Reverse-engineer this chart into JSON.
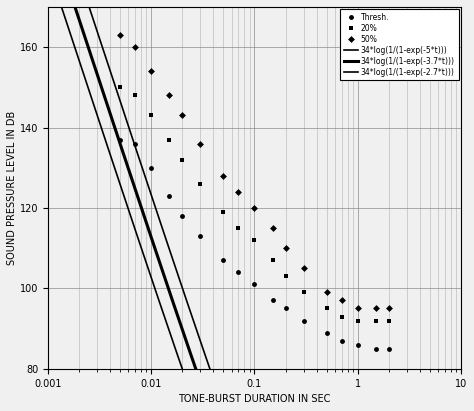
{
  "title": "",
  "xlabel": "TONE-BURST DURATION IN SEC",
  "ylabel": "SOUND PRESSURE LEVEL IN DB",
  "xlim": [
    0.001,
    10
  ],
  "ylim": [
    80,
    170
  ],
  "yticks": [
    80,
    100,
    120,
    140,
    160
  ],
  "curve_params": [
    5.0,
    3.7,
    2.7
  ],
  "curve_colors": [
    "#000000",
    "#000000",
    "#000000"
  ],
  "curve_linewidths": [
    1.2,
    2.2,
    1.2
  ],
  "legend_labels": [
    "Thresh.",
    "20%",
    "50%",
    "34*log(1/(1-exp(-5*t)))",
    "34*log(1/(1-exp(-3.7*t)))",
    "34*log(1/(1-exp(-2.7*t)))"
  ],
  "thresh_data": [
    [
      0.005,
      137
    ],
    [
      0.007,
      136
    ],
    [
      0.01,
      130
    ],
    [
      0.015,
      123
    ],
    [
      0.02,
      118
    ],
    [
      0.03,
      113
    ],
    [
      0.05,
      107
    ],
    [
      0.07,
      104
    ],
    [
      0.1,
      101
    ],
    [
      0.15,
      97
    ],
    [
      0.2,
      95
    ],
    [
      0.3,
      92
    ],
    [
      0.5,
      89
    ],
    [
      0.7,
      87
    ],
    [
      1.0,
      86
    ],
    [
      1.5,
      85
    ],
    [
      2.0,
      85
    ]
  ],
  "pct20_data": [
    [
      0.005,
      150
    ],
    [
      0.007,
      148
    ],
    [
      0.01,
      143
    ],
    [
      0.015,
      137
    ],
    [
      0.02,
      132
    ],
    [
      0.03,
      126
    ],
    [
      0.05,
      119
    ],
    [
      0.07,
      115
    ],
    [
      0.1,
      112
    ],
    [
      0.15,
      107
    ],
    [
      0.2,
      103
    ],
    [
      0.3,
      99
    ],
    [
      0.5,
      95
    ],
    [
      0.7,
      93
    ],
    [
      1.0,
      92
    ],
    [
      1.5,
      92
    ],
    [
      2.0,
      92
    ]
  ],
  "pct50_data": [
    [
      0.005,
      163
    ],
    [
      0.007,
      160
    ],
    [
      0.01,
      154
    ],
    [
      0.015,
      148
    ],
    [
      0.02,
      143
    ],
    [
      0.03,
      136
    ],
    [
      0.05,
      128
    ],
    [
      0.07,
      124
    ],
    [
      0.1,
      120
    ],
    [
      0.15,
      115
    ],
    [
      0.2,
      110
    ],
    [
      0.3,
      105
    ],
    [
      0.5,
      99
    ],
    [
      0.7,
      97
    ],
    [
      1.0,
      95
    ],
    [
      1.5,
      95
    ],
    [
      2.0,
      95
    ]
  ],
  "background_color": "#f0f0f0",
  "grid_color": "#888888",
  "marker_circle": "o",
  "marker_square": "s",
  "marker_diamond": "D",
  "markersize": 3.5
}
